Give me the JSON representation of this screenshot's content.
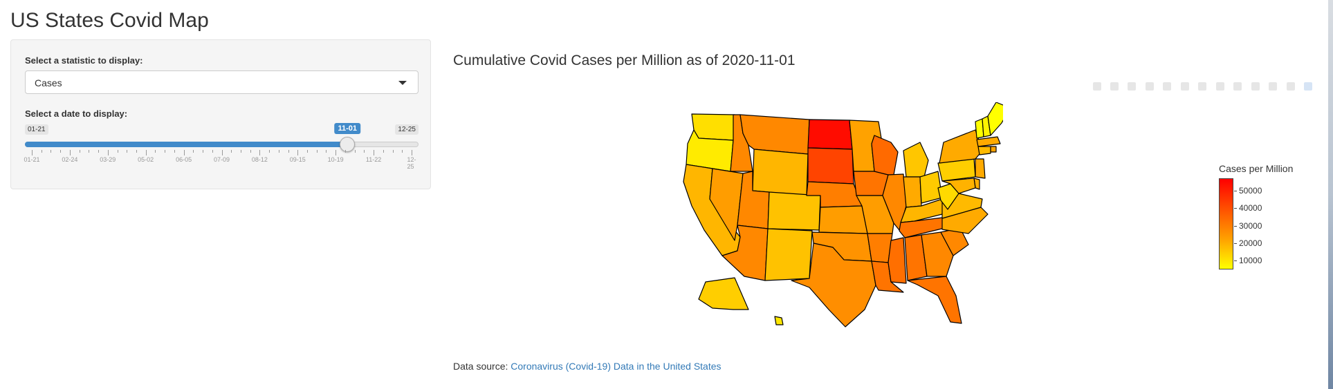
{
  "page": {
    "title": "US States Covid Map"
  },
  "sidebar": {
    "statistic_label": "Select a statistic to display:",
    "statistic_value": "Cases",
    "date_label": "Select a date to display:",
    "slider": {
      "min_label": "01-21",
      "max_label": "12-25",
      "current_label": "11-01",
      "value_fraction": 0.831,
      "ticks": [
        "01-21",
        "02-24",
        "03-29",
        "05-02",
        "06-05",
        "07-09",
        "08-12",
        "09-15",
        "10-19",
        "11-22",
        "12-25"
      ]
    }
  },
  "chart": {
    "title": "Cumulative Covid Cases per Million as of 2020-11-01",
    "legend_title": "Cases per Million",
    "legend_ticks": [
      "50000",
      "40000",
      "30000",
      "20000",
      "10000"
    ]
  },
  "footer": {
    "prefix": "Data source:",
    "link_text": "Coronavirus (Covid-19) Data in the United States"
  },
  "colors": {
    "accent": "#428bca",
    "link": "#337ab7",
    "scale_low": "#ffff00",
    "scale_mid": "#ffa000",
    "scale_high": "#ff0000"
  },
  "chart_data": {
    "type": "choropleth",
    "title": "Cumulative Covid Cases per Million as of 2020-11-01",
    "colorbar_title": "Cases per Million",
    "colorbar_ticks": [
      10000,
      20000,
      30000,
      40000,
      50000
    ],
    "zrange": [
      5000,
      57000
    ],
    "region": "USA states",
    "values": {
      "ND": 55000,
      "SD": 46000,
      "WI": 39000,
      "IA": 37000,
      "MS": 38000,
      "LA": 37000,
      "TN": 37000,
      "AL": 37000,
      "FL": 37000,
      "AR": 35000,
      "MT": 33000,
      "NE": 35000,
      "UT": 33000,
      "IL": 33000,
      "AZ": 33000,
      "TX": 32000,
      "ID": 33000,
      "SC": 33000,
      "GA": 33000,
      "OK": 31000,
      "KS": 29000,
      "MN": 28000,
      "NV": 29000,
      "MO": 29000,
      "RI": 28000,
      "NY": 26000,
      "NJ": 26000,
      "MA": 26000,
      "DE": 25000,
      "CT": 22000,
      "IN": 26000,
      "WY": 23000,
      "NM": 20000,
      "CO": 20000,
      "CA": 23000,
      "NC": 26000,
      "MD": 24000,
      "VA": 22000,
      "KY": 23000,
      "MI": 19000,
      "OH": 18000,
      "AK": 17000,
      "PA": 17000,
      "WV": 14000,
      "HI": 11000,
      "WA": 13000,
      "OR": 10000,
      "NH": 8000,
      "ME": 5000,
      "VT": 3000
    }
  }
}
